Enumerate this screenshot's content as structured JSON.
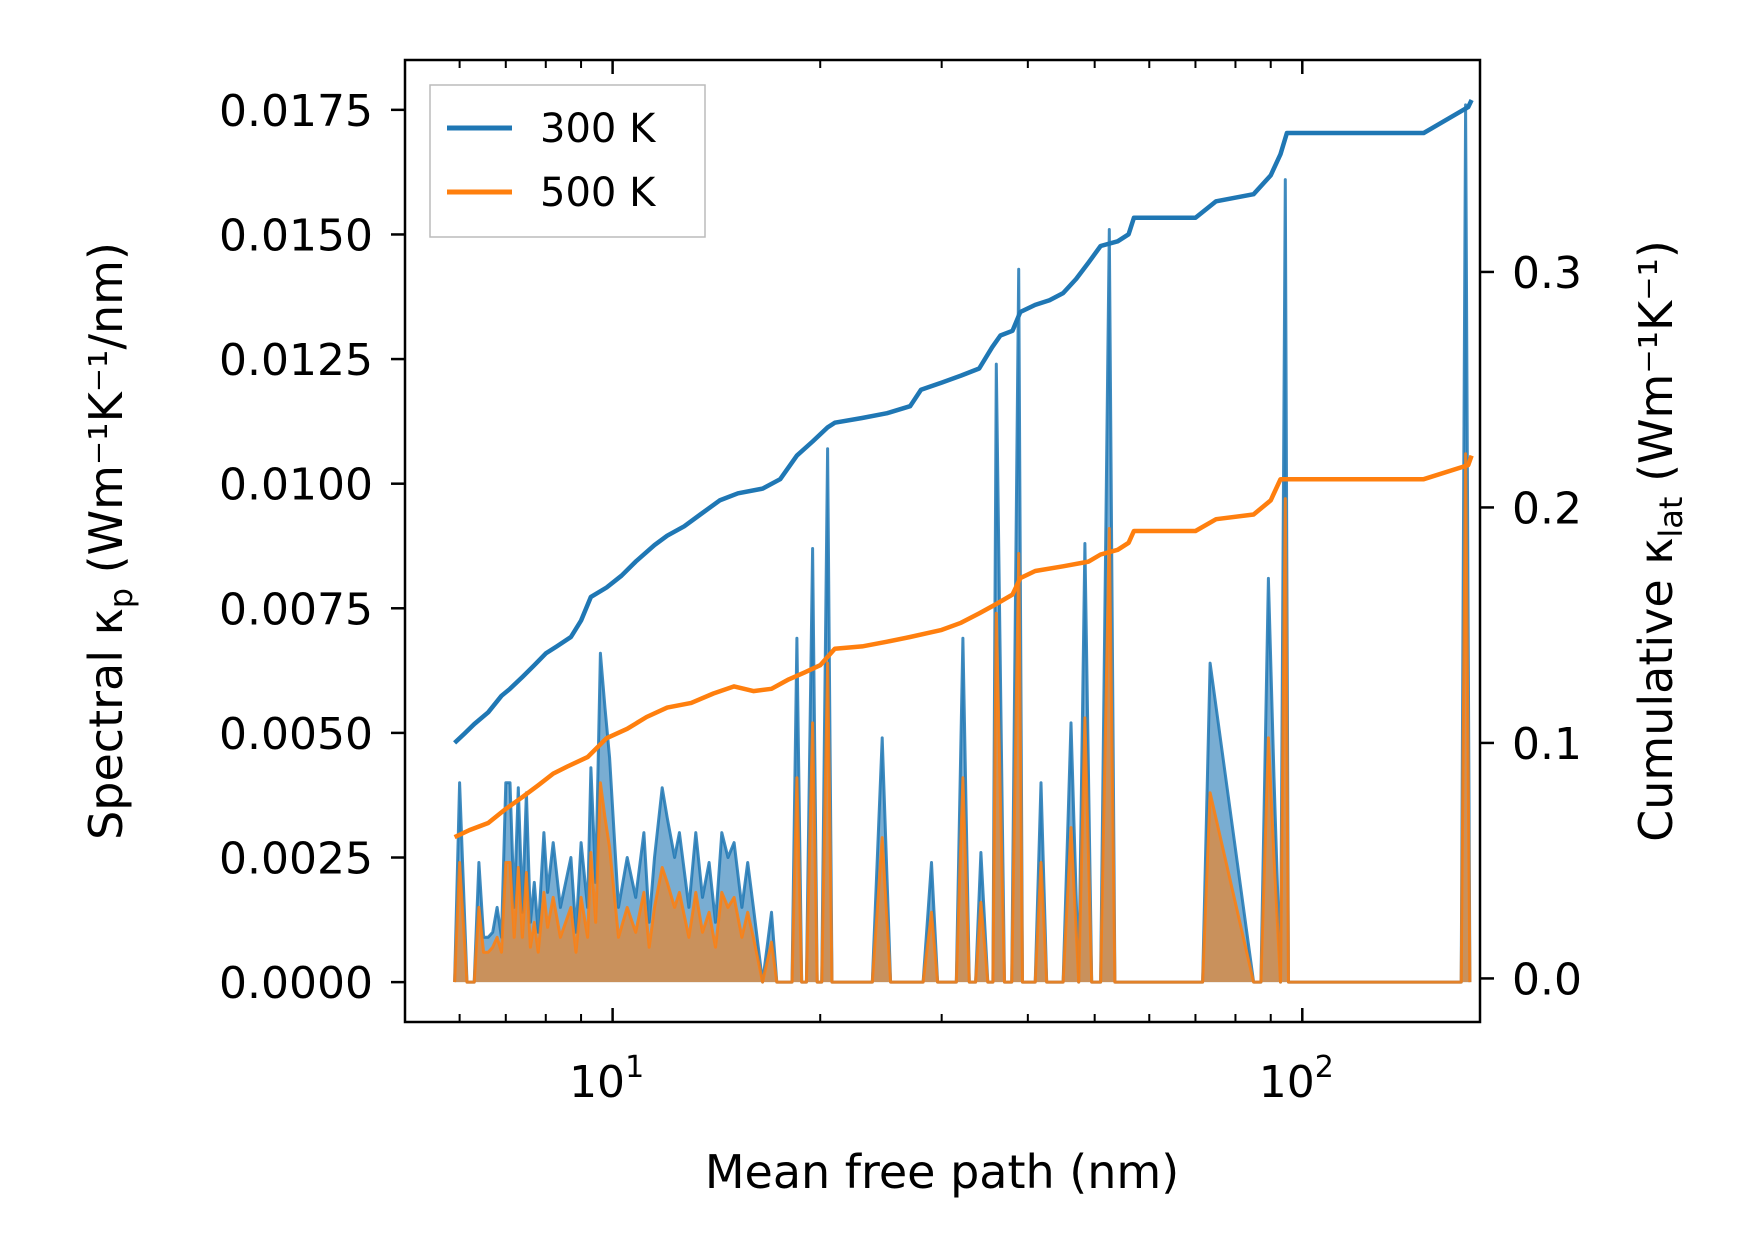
{
  "chart_data": {
    "type": "line",
    "x_scale": "log",
    "xlabel": "Mean free path (nm)",
    "xlim": [
      5.0,
      181.0
    ],
    "x_ticks": [
      {
        "value": 10,
        "base": "10",
        "exp": "1"
      },
      {
        "value": 100,
        "base": "10",
        "exp": "2"
      }
    ],
    "left_axis": {
      "label_prefix": "Spectral κ",
      "label_sub": "p",
      "label_units": " (Wm⁻¹K⁻¹/nm)",
      "ylim": [
        -0.0008,
        0.0185
      ],
      "ticks": [
        0.0,
        0.0025,
        0.005,
        0.0075,
        0.01,
        0.0125,
        0.015,
        0.0175
      ],
      "tick_labels": [
        "0.0000",
        "0.0025",
        "0.0050",
        "0.0075",
        "0.0100",
        "0.0125",
        "0.0150",
        "0.0175"
      ]
    },
    "right_axis": {
      "label_prefix": "Cumulative κ",
      "label_sub": "lat",
      "label_units": " (Wm⁻¹K⁻¹)",
      "ylim": [
        -0.0185,
        0.39
      ],
      "ticks": [
        0.0,
        0.1,
        0.2,
        0.3
      ],
      "tick_labels": [
        "0.0",
        "0.1",
        "0.2",
        "0.3"
      ]
    },
    "legend": {
      "position": "top-left",
      "entries": [
        "300 K",
        "500 K"
      ]
    },
    "series": [
      {
        "name": "300 K",
        "color": "#1f77b4",
        "axis": "right",
        "role": "cumulative",
        "x": [
          5.9,
          6.1,
          6.3,
          6.6,
          6.9,
          7.1,
          7.4,
          7.7,
          8.0,
          8.3,
          8.7,
          9.0,
          9.3,
          9.8,
          10.3,
          10.8,
          11.5,
          12.0,
          12.7,
          13.4,
          14.3,
          15.2,
          16.5,
          17.5,
          18.5,
          19.5,
          20.5,
          21.0,
          23.0,
          25.0,
          27.0,
          28.0,
          30.0,
          32.0,
          34.0,
          35.5,
          36.5,
          38.0,
          39.0,
          41.0,
          43.0,
          45.0,
          47.0,
          49.0,
          51.0,
          54.0,
          56.0,
          57.0,
          70.0,
          75.0,
          85.0,
          90.0,
          93.0,
          95.0,
          100.0,
          150.0,
          174.0,
          176.0
        ],
        "y": [
          0.1,
          0.104,
          0.108,
          0.113,
          0.12,
          0.123,
          0.128,
          0.133,
          0.138,
          0.141,
          0.145,
          0.152,
          0.162,
          0.166,
          0.171,
          0.177,
          0.184,
          0.188,
          0.192,
          0.197,
          0.203,
          0.206,
          0.208,
          0.212,
          0.222,
          0.228,
          0.234,
          0.236,
          0.238,
          0.24,
          0.243,
          0.25,
          0.253,
          0.256,
          0.259,
          0.268,
          0.273,
          0.275,
          0.283,
          0.286,
          0.288,
          0.291,
          0.297,
          0.304,
          0.311,
          0.313,
          0.316,
          0.323,
          0.323,
          0.33,
          0.333,
          0.341,
          0.35,
          0.359,
          0.359,
          0.359,
          0.37,
          0.373
        ]
      },
      {
        "name": "500 K",
        "color": "#ff7f0e",
        "axis": "right",
        "role": "cumulative",
        "x": [
          5.9,
          6.2,
          6.6,
          7.0,
          7.4,
          7.8,
          8.2,
          8.6,
          9.2,
          9.8,
          10.5,
          11.2,
          12.0,
          13.0,
          14.0,
          15.0,
          16.0,
          17.0,
          18.0,
          19.0,
          20.0,
          21.0,
          23.0,
          25.0,
          27.0,
          30.0,
          32.0,
          34.0,
          36.0,
          38.0,
          39.0,
          41.0,
          45.0,
          49.0,
          51.0,
          54.0,
          56.0,
          57.0,
          70.0,
          75.0,
          85.0,
          90.0,
          93.0,
          95.0,
          100.0,
          150.0,
          174.0,
          176.0
        ],
        "y": [
          0.06,
          0.063,
          0.066,
          0.072,
          0.077,
          0.082,
          0.087,
          0.09,
          0.094,
          0.102,
          0.106,
          0.111,
          0.115,
          0.117,
          0.121,
          0.124,
          0.122,
          0.123,
          0.127,
          0.13,
          0.133,
          0.14,
          0.141,
          0.143,
          0.145,
          0.148,
          0.151,
          0.155,
          0.159,
          0.163,
          0.17,
          0.173,
          0.175,
          0.177,
          0.18,
          0.182,
          0.185,
          0.19,
          0.19,
          0.195,
          0.197,
          0.203,
          0.212,
          0.212,
          0.212,
          0.212,
          0.218,
          0.222
        ]
      },
      {
        "name": "300 K",
        "color": "#1f77b4",
        "axis": "left",
        "role": "spectral",
        "x": [
          5.9,
          6.0,
          6.15,
          6.3,
          6.4,
          6.5,
          6.6,
          6.7,
          6.8,
          6.9,
          7.0,
          7.1,
          7.2,
          7.3,
          7.4,
          7.5,
          7.6,
          7.7,
          7.8,
          7.95,
          8.05,
          8.2,
          8.4,
          8.7,
          8.85,
          9.0,
          9.2,
          9.3,
          9.45,
          9.6,
          9.75,
          9.9,
          10.2,
          10.5,
          10.8,
          11.1,
          11.3,
          11.5,
          11.8,
          12.0,
          12.3,
          12.5,
          12.9,
          13.2,
          13.5,
          13.8,
          14.1,
          14.4,
          14.7,
          15.0,
          15.4,
          15.7,
          16.0,
          16.5,
          17.0,
          17.3,
          17.6,
          18.2,
          18.5,
          18.8,
          19.1,
          19.5,
          19.8,
          20.1,
          20.5,
          20.8,
          21.0,
          21.3,
          23.0,
          23.8,
          24.6,
          25.3,
          26.0,
          27.5,
          28.2,
          29.0,
          29.6,
          30.2,
          31.5,
          32.2,
          32.9,
          33.6,
          34.2,
          35.0,
          35.6,
          36.0,
          37.0,
          37.9,
          38.8,
          39.3,
          40.0,
          41.0,
          41.8,
          42.6,
          45.0,
          46.2,
          47.4,
          48.4,
          49.5,
          51.0,
          52.5,
          53.5,
          54.2,
          70.0,
          71.7,
          73.5,
          85.0,
          87.1,
          89.3,
          91.0,
          93.0,
          94.5,
          95.5,
          97.0,
          165.0,
          167.5,
          170.0,
          172.5,
          175.0
        ],
        "y": [
          0.0,
          0.004,
          0.0,
          0.0,
          0.0024,
          0.0009,
          0.0009,
          0.001,
          0.0015,
          0.0009,
          0.004,
          0.004,
          0.0015,
          0.0039,
          0.0014,
          0.0038,
          0.0012,
          0.002,
          0.001,
          0.003,
          0.0018,
          0.0028,
          0.0015,
          0.0025,
          0.001,
          0.0028,
          0.0015,
          0.0043,
          0.002,
          0.0066,
          0.0055,
          0.0045,
          0.0015,
          0.0025,
          0.0017,
          0.003,
          0.0012,
          0.0025,
          0.0039,
          0.0033,
          0.0025,
          0.003,
          0.0015,
          0.003,
          0.0017,
          0.0024,
          0.0012,
          0.003,
          0.0025,
          0.0028,
          0.0015,
          0.0024,
          0.0015,
          0.0,
          0.0014,
          0.0,
          0.0,
          0.0,
          0.0069,
          0.0,
          0.0,
          0.0087,
          0.0,
          0.0,
          0.0107,
          0.0,
          0.0,
          0.0,
          0.0,
          0.0,
          0.0049,
          0.0,
          0.0,
          0.0,
          0.0,
          0.0024,
          0.0,
          0.0,
          0.0,
          0.0069,
          0.0,
          0.0,
          0.0026,
          0.0,
          0.0,
          0.0124,
          0.0,
          0.0,
          0.0143,
          0.0,
          0.0,
          0.0,
          0.004,
          0.0,
          0.0,
          0.0052,
          0.0,
          0.0088,
          0.0,
          0.0,
          0.0151,
          0.0,
          0.0,
          0.0,
          0.0,
          0.0064,
          0.0,
          0.0,
          0.0081,
          0.0041,
          0.0,
          0.0161,
          0.0,
          0.0,
          0.0,
          0.0,
          0.0,
          0.0176,
          0.0
        ]
      },
      {
        "name": "500 K",
        "color": "#ff7f0e",
        "axis": "left",
        "role": "spectral",
        "x": [
          5.9,
          6.0,
          6.15,
          6.3,
          6.4,
          6.5,
          6.6,
          6.7,
          6.8,
          6.9,
          7.0,
          7.1,
          7.2,
          7.3,
          7.4,
          7.5,
          7.6,
          7.7,
          7.8,
          7.95,
          8.05,
          8.2,
          8.4,
          8.7,
          8.85,
          9.0,
          9.2,
          9.3,
          9.45,
          9.6,
          9.75,
          9.9,
          10.2,
          10.5,
          10.8,
          11.1,
          11.3,
          11.5,
          11.8,
          12.0,
          12.3,
          12.5,
          12.9,
          13.2,
          13.5,
          13.8,
          14.1,
          14.4,
          14.7,
          15.0,
          15.4,
          15.7,
          16.0,
          16.5,
          17.0,
          17.3,
          17.6,
          18.2,
          18.5,
          18.8,
          19.1,
          19.5,
          19.8,
          20.1,
          20.5,
          20.8,
          21.0,
          21.3,
          23.0,
          23.8,
          24.6,
          25.3,
          26.0,
          27.5,
          28.2,
          29.0,
          29.6,
          30.2,
          31.5,
          32.2,
          32.9,
          33.6,
          34.2,
          35.0,
          35.6,
          36.0,
          37.0,
          37.9,
          38.8,
          39.3,
          40.0,
          41.0,
          41.8,
          42.6,
          45.0,
          46.2,
          47.4,
          48.4,
          49.5,
          51.0,
          52.5,
          53.5,
          54.2,
          70.0,
          71.7,
          73.5,
          85.0,
          87.1,
          89.3,
          91.0,
          93.0,
          94.5,
          95.5,
          97.0,
          165.0,
          167.5,
          170.0,
          172.5,
          175.0
        ],
        "y": [
          0.0,
          0.0024,
          0.0,
          0.0,
          0.0015,
          0.0006,
          0.0006,
          0.0007,
          0.0009,
          0.0006,
          0.0024,
          0.0024,
          0.0009,
          0.0023,
          0.0009,
          0.0022,
          0.0007,
          0.0012,
          0.0006,
          0.0018,
          0.0011,
          0.0017,
          0.0009,
          0.0015,
          0.0006,
          0.0017,
          0.0009,
          0.0026,
          0.0012,
          0.004,
          0.0033,
          0.0027,
          0.0009,
          0.0015,
          0.001,
          0.0018,
          0.0007,
          0.0015,
          0.0023,
          0.002,
          0.0015,
          0.0018,
          0.0009,
          0.0018,
          0.001,
          0.0014,
          0.0007,
          0.0018,
          0.0015,
          0.0017,
          0.0009,
          0.0014,
          0.0009,
          0.0,
          0.0008,
          0.0,
          0.0,
          0.0,
          0.0041,
          0.0,
          0.0,
          0.0052,
          0.0,
          0.0,
          0.0064,
          0.0,
          0.0,
          0.0,
          0.0,
          0.0,
          0.0029,
          0.0,
          0.0,
          0.0,
          0.0,
          0.0014,
          0.0,
          0.0,
          0.0,
          0.0041,
          0.0,
          0.0,
          0.0016,
          0.0,
          0.0,
          0.0074,
          0.0,
          0.0,
          0.0086,
          0.0,
          0.0,
          0.0,
          0.0024,
          0.0,
          0.0,
          0.0031,
          0.0,
          0.0053,
          0.0,
          0.0,
          0.0091,
          0.0,
          0.0,
          0.0,
          0.0,
          0.0038,
          0.0,
          0.0,
          0.0049,
          0.0025,
          0.0,
          0.0097,
          0.0,
          0.0,
          0.0,
          0.0,
          0.0,
          0.0106,
          0.0
        ]
      }
    ]
  }
}
